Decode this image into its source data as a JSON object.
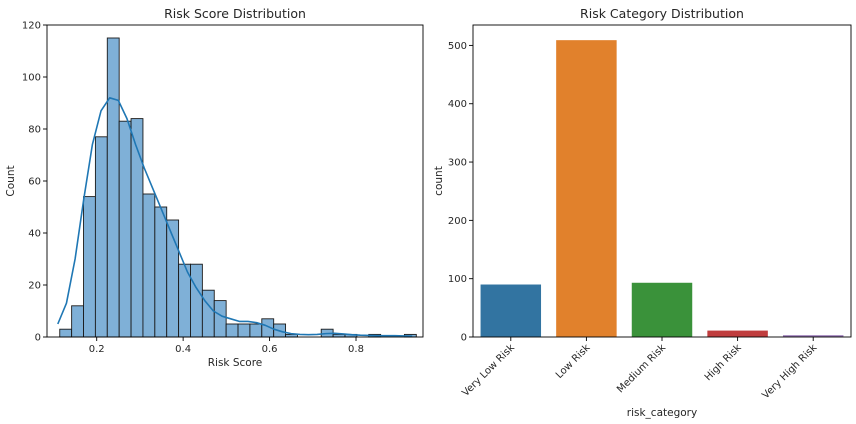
{
  "chart_data": [
    {
      "type": "bar",
      "subtype": "histogram-with-kde",
      "title": "Risk Score Distribution",
      "xlabel": "Risk Score",
      "ylabel": "Count",
      "xlim": [
        0.085,
        0.955
      ],
      "ylim": [
        0,
        120
      ],
      "xticks": [
        0.2,
        0.4,
        0.6,
        0.8
      ],
      "xtick_labels": [
        "0.2",
        "0.4",
        "0.6",
        "0.8"
      ],
      "yticks": [
        0,
        20,
        40,
        60,
        80,
        100,
        120
      ],
      "ytick_labels": [
        "0",
        "20",
        "40",
        "60",
        "80",
        "100",
        "120"
      ],
      "bin_start": 0.1145,
      "bin_width": 0.0275,
      "counts": [
        3,
        12,
        54,
        77,
        115,
        83,
        84,
        55,
        50,
        45,
        28,
        28,
        18,
        14,
        5,
        5,
        5,
        7,
        5,
        1,
        0,
        0,
        3,
        1,
        1,
        0,
        1,
        0,
        0,
        1
      ],
      "kde": {
        "x": [
          0.11,
          0.13,
          0.15,
          0.17,
          0.19,
          0.21,
          0.23,
          0.25,
          0.27,
          0.29,
          0.31,
          0.33,
          0.35,
          0.37,
          0.39,
          0.41,
          0.43,
          0.45,
          0.47,
          0.49,
          0.51,
          0.53,
          0.55,
          0.57,
          0.59,
          0.61,
          0.63,
          0.65,
          0.67,
          0.69,
          0.71,
          0.73,
          0.75,
          0.77,
          0.79,
          0.81,
          0.83,
          0.85,
          0.87,
          0.89,
          0.91,
          0.93
        ],
        "y": [
          5,
          13,
          30,
          53,
          74,
          87,
          92,
          91,
          84,
          74,
          65,
          57,
          49,
          41,
          33,
          25,
          19,
          14,
          10,
          8,
          7,
          6,
          6,
          5.5,
          4.5,
          3,
          2,
          1.3,
          1,
          0.9,
          1,
          1.3,
          1.4,
          1.2,
          0.9,
          0.7,
          0.6,
          0.5,
          0.5,
          0.5,
          0.4,
          0.3
        ]
      },
      "colors": {
        "bar_fill": "#7fb0d7",
        "bar_edge": "#1a1a1a",
        "kde_line": "#1f77b4"
      },
      "grid": false
    },
    {
      "type": "bar",
      "title": "Risk Category Distribution",
      "xlabel": "risk_category",
      "ylabel": "count",
      "categories": [
        "Very Low Risk",
        "Low Risk",
        "Medium Risk",
        "High Risk",
        "Very High Risk"
      ],
      "values": [
        90,
        509,
        93,
        11,
        3
      ],
      "ylim": [
        0,
        535
      ],
      "yticks": [
        0,
        100,
        200,
        300,
        400,
        500
      ],
      "ytick_labels": [
        "0",
        "100",
        "200",
        "300",
        "400",
        "500"
      ],
      "xtick_rotation": 45,
      "colors": [
        "#3274a1",
        "#e1812c",
        "#3a923a",
        "#c03d3e",
        "#9372b2"
      ],
      "grid": false
    }
  ]
}
